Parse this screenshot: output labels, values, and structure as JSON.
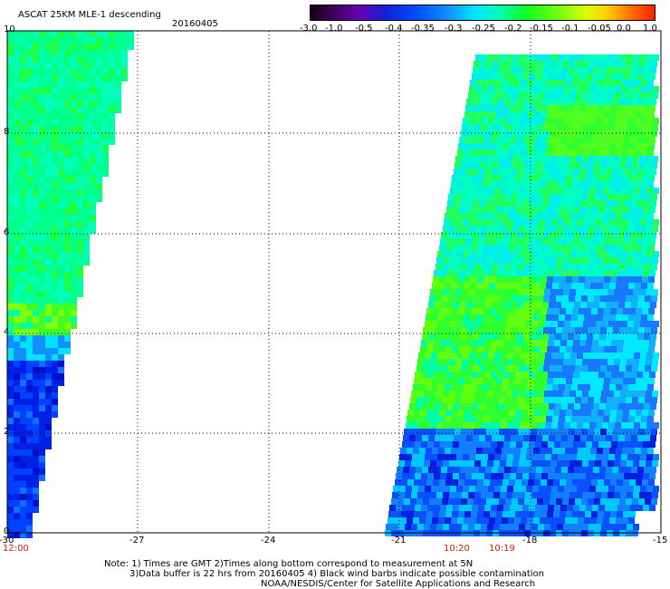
{
  "header": {
    "title": "ASCAT 25KM MLE-1 descending",
    "date": "20160405"
  },
  "colorbar": {
    "labels": [
      "-3.0",
      "-1.0",
      "-0.5",
      "-0.4",
      "-0.35",
      "-0.3",
      "-0.25",
      "-0.2",
      "-0.15",
      "-0.1",
      "-0.05",
      "0.0",
      "1.0"
    ],
    "colors": [
      "#140014",
      "#6a00b0",
      "#0018e0",
      "#0a58ff",
      "#1a98ff",
      "#00e8ff",
      "#00ffb0",
      "#10ff20",
      "#70ff10",
      "#d8ff00",
      "#ffd000",
      "#ff7000",
      "#ff2000"
    ]
  },
  "map": {
    "x_ticks": [
      "-30",
      "-27",
      "-24",
      "-21",
      "-18",
      "-15"
    ],
    "y_ticks": [
      "0",
      "2",
      "4",
      "6",
      "8",
      "10"
    ],
    "time_labels": [
      "12:00",
      "10:20",
      "10:19"
    ]
  },
  "notes": {
    "line1": "Note: 1) Times are GMT 2)Times along bottom correspond to measurement at 5N",
    "line2": "3)Data buffer is 22 hrs from 20160405 4) Black wind barbs indicate possible contamination",
    "line3": "NOAA/NESDIS/Center for Satellite Applications and Research"
  }
}
